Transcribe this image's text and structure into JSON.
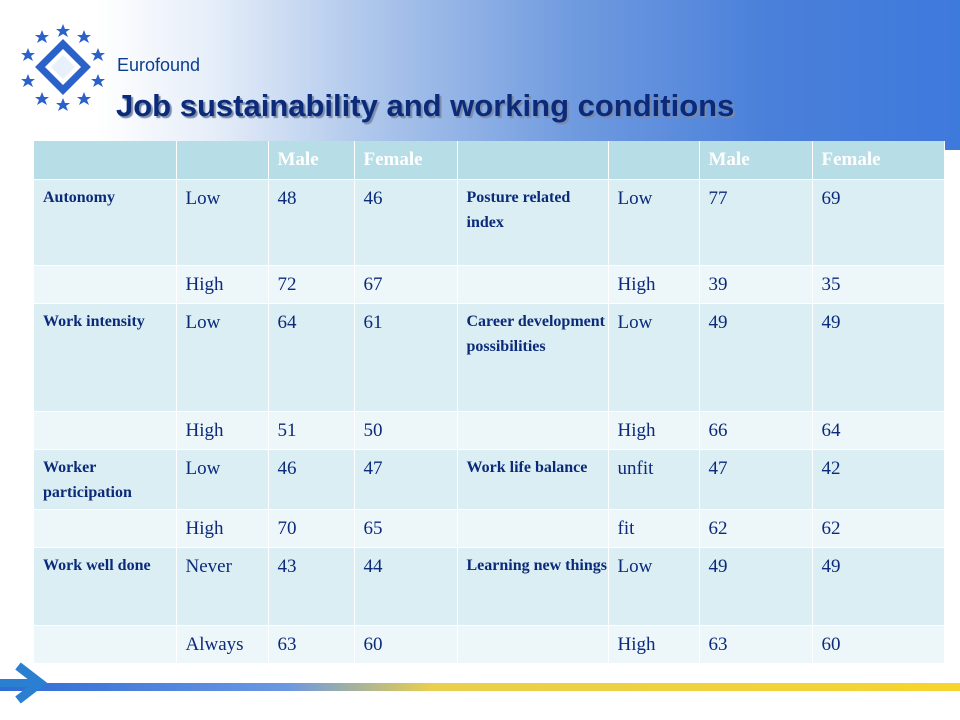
{
  "header": {
    "brand": "Eurofound",
    "title": "Job sustainability and working conditions"
  },
  "table": {
    "headers": [
      "",
      "",
      "Male",
      "Female",
      "",
      "",
      "Male",
      "Female"
    ],
    "rows": [
      [
        "Autonomy",
        "Low",
        "48",
        "46",
        "Posture related index",
        "Low",
        "77",
        "69"
      ],
      [
        "",
        "High",
        "72",
        "67",
        "",
        "High",
        "39",
        "35"
      ],
      [
        "Work intensity",
        "Low",
        "64",
        "61",
        "Career development possibilities",
        "Low",
        "49",
        "49"
      ],
      [
        "",
        "High",
        "51",
        "50",
        "",
        "High",
        "66",
        "64"
      ],
      [
        "Worker participation",
        "Low",
        "46",
        "47",
        "Work life balance",
        "unfit",
        "47",
        "42"
      ],
      [
        "",
        "High",
        "70",
        "65",
        "",
        "fit",
        "62",
        "62"
      ],
      [
        "Work well done",
        "Never",
        "43",
        "44",
        "Learning new things",
        "Low",
        "49",
        "49"
      ],
      [
        "",
        "Always",
        "63",
        "60",
        "",
        "High",
        "63",
        "60"
      ]
    ]
  },
  "colors": {
    "header_cell": "#b7dde6",
    "row_odd": "#dbeef3",
    "row_even": "#edf6f9",
    "text": "#0b2a7a",
    "brand": "#0c3f8d"
  }
}
